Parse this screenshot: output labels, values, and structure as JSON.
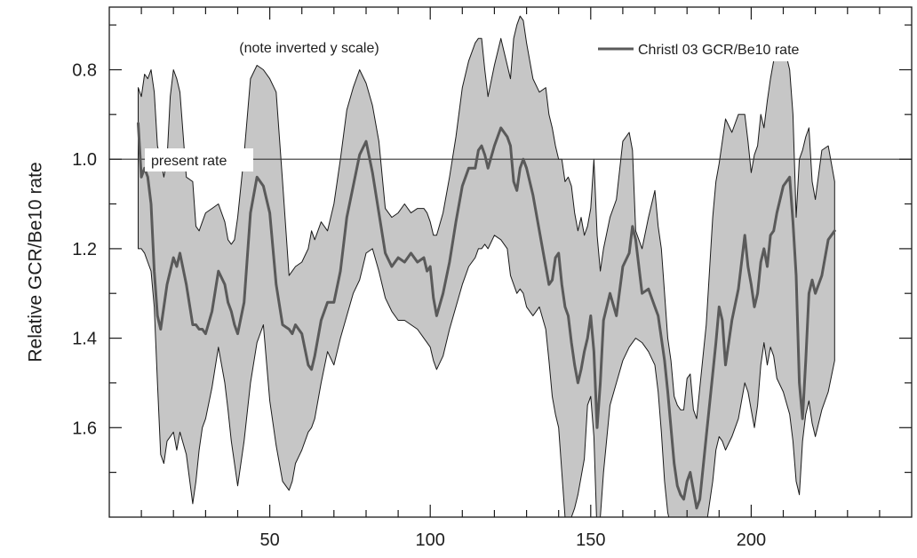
{
  "chart_data": {
    "type": "area",
    "title": "",
    "xlabel": "",
    "ylabel": "Relative GCR/Be10 rate",
    "xlim": [
      0,
      250
    ],
    "ylim": [
      1.8,
      0.66
    ],
    "y_inverted": true,
    "xticks": [
      50,
      100,
      150,
      200
    ],
    "xticks_minor_step": 10,
    "yticks": [
      0.8,
      1.0,
      1.2,
      1.4,
      1.6
    ],
    "yticks_minor_step": 0.1,
    "grid": false,
    "legend": {
      "position": "top-right",
      "entries": [
        {
          "label": "Christl 03 GCR/Be10 rate",
          "color": "#5a5a5a"
        }
      ]
    },
    "annotations": [
      {
        "text": "(note inverted y scale)"
      },
      {
        "text": "present rate"
      }
    ],
    "reference_line": {
      "y": 1.0,
      "label": "present rate",
      "color": "#333333"
    },
    "band_color": "#c6c6c6",
    "band_edge_color": "#1a1a1a",
    "line_color": "#5a5a5a",
    "series": [
      {
        "name": "Christl 03 GCR/Be10 rate",
        "x": [
          9,
          10,
          11,
          12,
          13,
          14,
          15,
          16,
          17,
          18,
          19,
          20,
          21,
          22,
          24,
          26,
          27,
          28,
          29,
          30,
          32,
          34,
          36,
          37,
          38,
          39,
          40,
          42,
          44,
          46,
          48,
          50,
          52,
          54,
          56,
          57,
          58,
          60,
          62,
          63,
          64,
          66,
          68,
          70,
          72,
          74,
          76,
          78,
          80,
          82,
          84,
          86,
          88,
          90,
          92,
          94,
          96,
          98,
          99,
          100,
          101,
          102,
          104,
          106,
          108,
          110,
          112,
          114,
          115,
          116,
          117,
          118,
          120,
          122,
          124,
          125,
          126,
          127,
          128,
          129,
          130,
          132,
          134,
          136,
          137,
          138,
          139,
          140,
          141,
          142,
          143,
          144,
          145,
          146,
          147,
          148,
          149,
          150,
          151,
          152,
          153,
          154,
          156,
          158,
          160,
          162,
          163,
          164,
          166,
          168,
          170,
          171,
          172,
          173,
          174,
          175,
          176,
          177,
          178,
          179,
          180,
          181,
          182,
          183,
          184,
          186,
          188,
          189,
          190,
          191,
          192,
          194,
          196,
          198,
          199,
          200,
          201,
          202,
          203,
          204,
          205,
          206,
          207,
          208,
          210,
          212,
          213,
          214,
          215,
          216,
          217,
          218,
          219,
          220,
          222,
          224,
          226
        ],
        "values": [
          0.92,
          1.04,
          1.02,
          1.04,
          1.1,
          1.25,
          1.35,
          1.38,
          1.33,
          1.28,
          1.25,
          1.22,
          1.24,
          1.21,
          1.28,
          1.37,
          1.37,
          1.38,
          1.38,
          1.39,
          1.34,
          1.25,
          1.28,
          1.32,
          1.34,
          1.37,
          1.39,
          1.32,
          1.12,
          1.04,
          1.06,
          1.12,
          1.28,
          1.37,
          1.38,
          1.39,
          1.37,
          1.39,
          1.46,
          1.47,
          1.44,
          1.36,
          1.32,
          1.32,
          1.25,
          1.13,
          1.06,
          0.99,
          0.96,
          1.03,
          1.12,
          1.21,
          1.24,
          1.22,
          1.23,
          1.21,
          1.23,
          1.22,
          1.25,
          1.24,
          1.31,
          1.35,
          1.3,
          1.23,
          1.14,
          1.06,
          1.02,
          1.02,
          0.98,
          0.97,
          0.99,
          1.02,
          0.97,
          0.93,
          0.95,
          0.97,
          1.05,
          1.07,
          1.02,
          1.0,
          1.02,
          1.08,
          1.16,
          1.24,
          1.28,
          1.27,
          1.22,
          1.21,
          1.28,
          1.33,
          1.35,
          1.41,
          1.46,
          1.5,
          1.47,
          1.43,
          1.4,
          1.35,
          1.43,
          1.6,
          1.5,
          1.36,
          1.3,
          1.35,
          1.24,
          1.21,
          1.15,
          1.18,
          1.3,
          1.29,
          1.33,
          1.35,
          1.4,
          1.45,
          1.52,
          1.6,
          1.68,
          1.73,
          1.75,
          1.76,
          1.72,
          1.7,
          1.74,
          1.78,
          1.76,
          1.62,
          1.48,
          1.41,
          1.33,
          1.36,
          1.46,
          1.36,
          1.29,
          1.17,
          1.24,
          1.28,
          1.33,
          1.3,
          1.23,
          1.2,
          1.24,
          1.17,
          1.16,
          1.12,
          1.06,
          1.04,
          1.14,
          1.26,
          1.5,
          1.58,
          1.45,
          1.3,
          1.27,
          1.3,
          1.26,
          1.18,
          1.16
        ]
      }
    ],
    "band_x": [
      9,
      10,
      11,
      12,
      13,
      14,
      15,
      16,
      17,
      18,
      19,
      20,
      21,
      22,
      24,
      26,
      27,
      28,
      29,
      30,
      32,
      34,
      36,
      37,
      38,
      39,
      40,
      42,
      44,
      46,
      48,
      50,
      52,
      54,
      56,
      57,
      58,
      60,
      62,
      63,
      64,
      66,
      68,
      70,
      72,
      74,
      76,
      78,
      80,
      82,
      84,
      86,
      88,
      90,
      92,
      94,
      96,
      98,
      99,
      100,
      101,
      102,
      104,
      106,
      108,
      110,
      112,
      114,
      115,
      116,
      117,
      118,
      120,
      122,
      124,
      125,
      126,
      127,
      128,
      129,
      130,
      132,
      134,
      136,
      137,
      138,
      139,
      140,
      141,
      142,
      143,
      144,
      145,
      146,
      147,
      148,
      149,
      150,
      151,
      152,
      153,
      154,
      156,
      158,
      160,
      162,
      163,
      164,
      166,
      168,
      170,
      171,
      172,
      173,
      174,
      175,
      176,
      177,
      178,
      179,
      180,
      181,
      182,
      183,
      184,
      186,
      188,
      189,
      190,
      191,
      192,
      194,
      196,
      198,
      199,
      200,
      201,
      202,
      203,
      204,
      205,
      206,
      207,
      208,
      210,
      212,
      213,
      214,
      215,
      216,
      217,
      218,
      219,
      220,
      222,
      224,
      226
    ],
    "band_upper": [
      0.84,
      0.86,
      0.81,
      0.82,
      0.8,
      0.85,
      0.97,
      1.0,
      1.04,
      1.0,
      0.86,
      0.8,
      0.82,
      0.85,
      1.04,
      1.05,
      1.15,
      1.16,
      1.14,
      1.12,
      1.11,
      1.1,
      1.14,
      1.18,
      1.19,
      1.18,
      1.13,
      0.99,
      0.82,
      0.79,
      0.8,
      0.82,
      0.85,
      1.05,
      1.26,
      1.25,
      1.24,
      1.23,
      1.2,
      1.16,
      1.18,
      1.14,
      1.16,
      1.1,
      1.0,
      0.89,
      0.84,
      0.8,
      0.83,
      0.88,
      0.96,
      1.11,
      1.13,
      1.12,
      1.1,
      1.12,
      1.11,
      1.11,
      1.12,
      1.14,
      1.17,
      1.17,
      1.12,
      1.04,
      0.95,
      0.84,
      0.78,
      0.74,
      0.73,
      0.73,
      0.8,
      0.86,
      0.79,
      0.73,
      0.79,
      0.82,
      0.73,
      0.7,
      0.68,
      0.69,
      0.74,
      0.82,
      0.85,
      0.84,
      0.9,
      0.93,
      0.97,
      1.0,
      1.0,
      1.05,
      1.04,
      1.06,
      1.12,
      1.16,
      1.13,
      1.17,
      1.15,
      1.11,
      1.0,
      1.17,
      1.25,
      1.2,
      1.13,
      1.09,
      0.96,
      0.94,
      0.98,
      1.16,
      1.2,
      1.13,
      1.07,
      1.15,
      1.2,
      1.3,
      1.4,
      1.45,
      1.53,
      1.55,
      1.56,
      1.56,
      1.49,
      1.48,
      1.56,
      1.58,
      1.51,
      1.37,
      1.13,
      1.05,
      1.01,
      0.96,
      0.91,
      0.94,
      0.9,
      0.9,
      0.96,
      1.03,
      0.99,
      0.97,
      0.9,
      0.93,
      0.87,
      0.82,
      0.78,
      0.75,
      0.74,
      0.8,
      0.9,
      1.13,
      1.0,
      0.98,
      0.95,
      0.93,
      1.05,
      1.09,
      0.98,
      0.97,
      1.05
    ],
    "band_lower": [
      1.2,
      1.2,
      1.21,
      1.23,
      1.25,
      1.33,
      1.5,
      1.66,
      1.68,
      1.63,
      1.62,
      1.61,
      1.65,
      1.61,
      1.66,
      1.77,
      1.72,
      1.65,
      1.6,
      1.58,
      1.51,
      1.42,
      1.5,
      1.56,
      1.63,
      1.68,
      1.73,
      1.63,
      1.5,
      1.41,
      1.37,
      1.54,
      1.64,
      1.72,
      1.74,
      1.72,
      1.68,
      1.65,
      1.61,
      1.6,
      1.58,
      1.5,
      1.43,
      1.46,
      1.4,
      1.35,
      1.3,
      1.27,
      1.21,
      1.2,
      1.25,
      1.31,
      1.34,
      1.36,
      1.36,
      1.37,
      1.38,
      1.4,
      1.41,
      1.42,
      1.45,
      1.47,
      1.44,
      1.38,
      1.33,
      1.28,
      1.24,
      1.22,
      1.2,
      1.2,
      1.19,
      1.2,
      1.17,
      1.18,
      1.2,
      1.26,
      1.28,
      1.3,
      1.29,
      1.3,
      1.33,
      1.35,
      1.33,
      1.38,
      1.45,
      1.53,
      1.57,
      1.6,
      1.7,
      1.8,
      1.82,
      1.8,
      1.78,
      1.75,
      1.71,
      1.67,
      1.55,
      1.53,
      1.62,
      1.84,
      1.8,
      1.7,
      1.55,
      1.5,
      1.45,
      1.42,
      1.41,
      1.4,
      1.41,
      1.43,
      1.46,
      1.52,
      1.61,
      1.72,
      1.79,
      1.82,
      1.85,
      1.85,
      1.82,
      1.82,
      1.8,
      1.83,
      1.84,
      1.85,
      1.84,
      1.82,
      1.72,
      1.65,
      1.62,
      1.63,
      1.65,
      1.62,
      1.58,
      1.5,
      1.52,
      1.56,
      1.6,
      1.55,
      1.46,
      1.41,
      1.46,
      1.42,
      1.44,
      1.49,
      1.52,
      1.57,
      1.63,
      1.72,
      1.75,
      1.63,
      1.57,
      1.54,
      1.59,
      1.62,
      1.56,
      1.52,
      1.45
    ]
  }
}
